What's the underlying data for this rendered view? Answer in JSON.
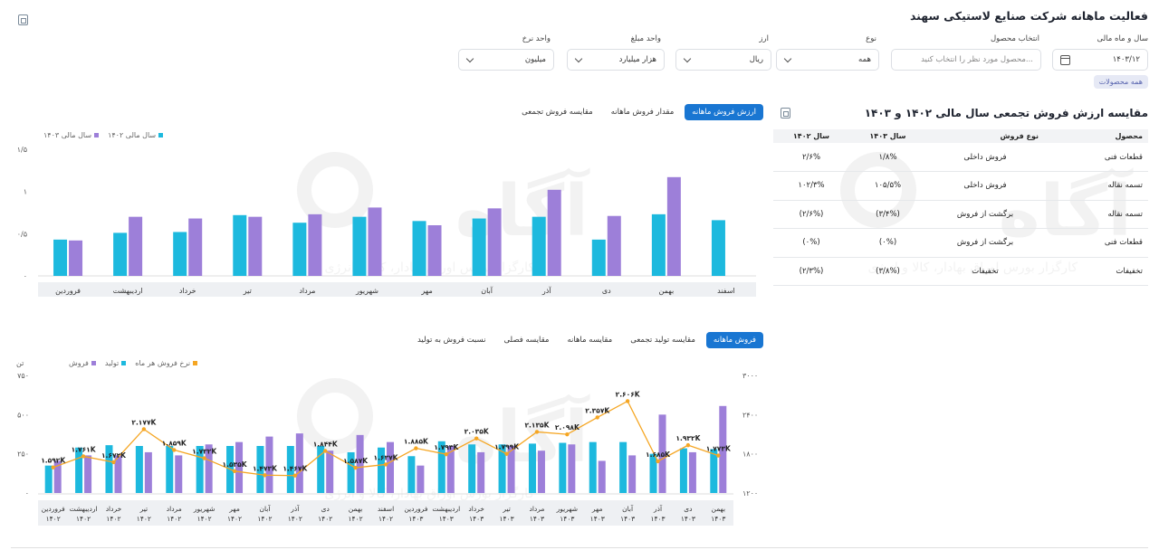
{
  "title": "فعالیت ماهانه شرکت صنایع لاستیکی سهند",
  "filters": {
    "year_month": {
      "label": "سال و ماه مالی",
      "value": "۱۴۰۳/۱۲"
    },
    "product": {
      "label": "انتخاب محصول",
      "placeholder": "محصول مورد نظر را انتخاب کنید..."
    },
    "type": {
      "label": "نوع",
      "value": "همه"
    },
    "currency": {
      "label": "ارز",
      "value": "ریال"
    },
    "amount_unit": {
      "label": "واحد مبلغ",
      "value": "هزار میلیارد"
    },
    "rate_unit": {
      "label": "واحد نرخ",
      "value": "میلیون"
    }
  },
  "all_products_tag": "همه محصولات",
  "watermark": {
    "logo": "آگاه",
    "subtitle": "کارگزار بورس اوراق بهادار، کالا و انرژی"
  },
  "comparison": {
    "title": "مقایسه ارزش فروش تجمعی سال مالی ۱۴۰۲ و ۱۴۰۳",
    "headers": [
      "محصول",
      "نوع فروش",
      "سال ۱۴۰۳",
      "سال ۱۴۰۲"
    ],
    "rows": [
      [
        "قطعات فنی",
        "فروش داخلی",
        "۱/۸%",
        "۲/۶%"
      ],
      [
        "تسمه نقاله",
        "فروش داخلی",
        "۱۰۵/۵%",
        "۱۰۲/۳%"
      ],
      [
        "تسمه نقاله",
        "برگشت از فروش",
        "(۳/۴%)",
        "(۲/۶%)"
      ],
      [
        "قطعات فنی",
        "برگشت از فروش",
        "(۰%)",
        "(۰%)"
      ],
      [
        "تخفیفات",
        "تخفیفات",
        "(۳/۸%)",
        "(۲/۳%)"
      ]
    ]
  },
  "top_tabs": [
    "ارزش فروش ماهانه",
    "مقدار فروش ماهانه",
    "مقایسه فروش تجمعی"
  ],
  "bottom_tabs": [
    "فروش ماهانه",
    "مقایسه تولید تجمعی",
    "مقایسه ماهانه",
    "مقایسه فصلی",
    "نسبت فروش به تولید"
  ],
  "colors": {
    "accent": "#1976d2",
    "cyan": "#1db9de",
    "purple": "#9d7fd9",
    "orange": "#f5a623"
  },
  "chart_data": [
    {
      "type": "bar",
      "categories": [
        "فروردین",
        "اردیبهشت",
        "خرداد",
        "تیر",
        "مرداد",
        "شهریور",
        "مهر",
        "آبان",
        "آذر",
        "دی",
        "بهمن",
        "اسفند"
      ],
      "series": [
        {
          "name": "سال مالی ۱۴۰۳",
          "values": [
            0.42,
            0.7,
            0.68,
            0.7,
            0.73,
            0.81,
            0.6,
            0.8,
            1.02,
            0.71,
            1.17,
            null
          ]
        },
        {
          "name": "سال مالی ۱۴۰۲",
          "values": [
            0.43,
            0.51,
            0.52,
            0.72,
            0.63,
            0.7,
            0.65,
            0.68,
            0.7,
            0.43,
            0.73,
            0.66
          ]
        }
      ],
      "yticks": [
        "۰",
        "۰/۵",
        "۱",
        "۱/۵"
      ],
      "ylim": [
        0,
        1.5
      ]
    },
    {
      "type": "bar+line",
      "categories": [
        "فروردین ۱۴۰۲",
        "اردیبهشت ۱۴۰۲",
        "خرداد ۱۴۰۲",
        "تیر ۱۴۰۲",
        "مرداد ۱۴۰۲",
        "شهریور ۱۴۰۲",
        "مهر ۱۴۰۲",
        "آبان ۱۴۰۲",
        "آذر ۱۴۰۲",
        "دی ۱۴۰۲",
        "بهمن ۱۴۰۲",
        "اسفند ۱۴۰۲",
        "فروردین ۱۴۰۳",
        "اردیبهشت ۱۴۰۳",
        "خرداد ۱۴۰۳",
        "تیر ۱۴۰۳",
        "مرداد ۱۴۰۳",
        "شهریور ۱۴۰۳",
        "مهر ۱۴۰۳",
        "آبان ۱۴۰۳",
        "آذر ۱۴۰۳",
        "دی ۱۴۰۳",
        "بهمن ۱۴۰۳"
      ],
      "series": [
        {
          "name": "فروش",
          "values": [
            205,
            240,
            240,
            260,
            240,
            310,
            325,
            360,
            380,
            270,
            370,
            325,
            175,
            300,
            260,
            300,
            270,
            310,
            205,
            240,
            500,
            260,
            555
          ]
        },
        {
          "name": "تولید",
          "values": [
            175,
            290,
            305,
            300,
            300,
            300,
            300,
            300,
            300,
            300,
            260,
            290,
            235,
            330,
            310,
            310,
            315,
            320,
            325,
            325,
            250,
            285,
            280
          ]
        },
        {
          "name": "نرخ فروش هر ماه",
          "values": [
            1.592,
            1.761,
            1.672,
            2.177,
            1.859,
            1.732,
            1.535,
            1.473,
            1.467,
            1.844,
            1.587,
            1.637,
            1.885,
            1.793,
            2.035,
            1.799,
            2.135,
            2.098,
            2.357,
            2.606,
            1.685,
            1.932,
            1.773
          ]
        }
      ],
      "point_labels": [
        "۱.۵۹۲K",
        "۱.۷۶۱K",
        "۱.۶۷۲K",
        "۲.۱۷۷K",
        "۱.۸۵۹K",
        "۱.۷۳۲K",
        "۱.۵۳۵K",
        "۱.۴۷۳K",
        "۱.۴۶۷K",
        "۱.۸۴۴K",
        "۱.۵۸۷K",
        "۱.۶۳۷K",
        "۱.۸۸۵K",
        "۱.۷۹۳K",
        "۲.۰۳۵K",
        "۱.۷۹۹K",
        "۲.۱۳۵K",
        "۲.۰۹۸K",
        "۲.۳۵۷K",
        "۲.۶۰۶K",
        "۱.۶۸۵K",
        "۱.۹۳۲K",
        "۱.۷۷۳K"
      ],
      "y_left_label": "تن",
      "y_left_ticks": [
        "۰",
        "۲۵۰",
        "۵۰۰",
        "۷۵۰"
      ],
      "y_left_lim": [
        0,
        750
      ],
      "y_right_ticks": [
        "۱۲۰۰",
        "۱۸۰۰",
        "۲۴۰۰",
        "۳۰۰۰"
      ],
      "y_right_lim": [
        1.2,
        3.0
      ]
    }
  ]
}
